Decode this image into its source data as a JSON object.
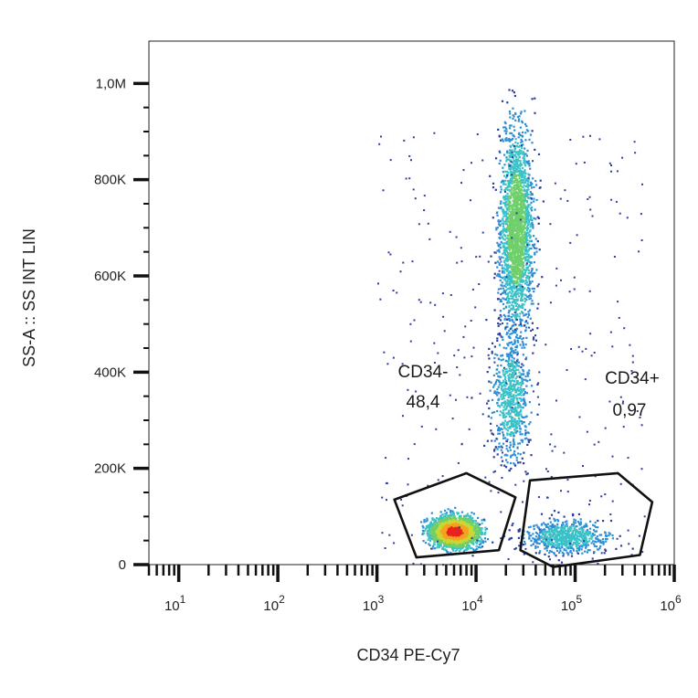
{
  "chart_data": {
    "type": "scatter",
    "subtype": "flow-cytometry-density-dot-plot",
    "xlabel": "CD34 PE-Cy7",
    "ylabel": "SS-A :: SS INT LIN",
    "x_scale": "log",
    "y_scale": "linear",
    "xlim": [
      5,
      1000000
    ],
    "ylim": [
      0,
      1050000
    ],
    "x_ticks": [
      {
        "value": 10,
        "base": "10",
        "exp": "1"
      },
      {
        "value": 100,
        "base": "10",
        "exp": "2"
      },
      {
        "value": 1000,
        "base": "10",
        "exp": "3"
      },
      {
        "value": 10000,
        "base": "10",
        "exp": "4"
      },
      {
        "value": 100000,
        "base": "10",
        "exp": "5"
      },
      {
        "value": 1000000,
        "base": "10",
        "exp": "6"
      }
    ],
    "y_ticks": [
      {
        "value": 0,
        "label": "0"
      },
      {
        "value": 200000,
        "label": "200K"
      },
      {
        "value": 400000,
        "label": "400K"
      },
      {
        "value": 600000,
        "label": "600K"
      },
      {
        "value": 800000,
        "label": "800K"
      },
      {
        "value": 1000000,
        "label": "1,0M"
      }
    ],
    "colormap": [
      "#2e3f9e",
      "#2f8fd6",
      "#3cc1c8",
      "#6fcf6a",
      "#c9d832",
      "#f5a21f",
      "#e8231c"
    ],
    "populations": [
      {
        "x_center": 6000,
        "y_center": 70000,
        "x_spread_decades": 0.17,
        "y_spread": 22000,
        "density": "very high"
      },
      {
        "x_center": 25000,
        "y_center": 700000,
        "x_spread_decades": 0.12,
        "y_spread": 150000,
        "density": "medium"
      },
      {
        "x_center": 22000,
        "y_center": 350000,
        "x_spread_decades": 0.14,
        "y_spread": 90000,
        "density": "low"
      },
      {
        "x_center": 80000,
        "y_center": 60000,
        "x_spread_decades": 0.3,
        "y_spread": 25000,
        "density": "low"
      }
    ],
    "gates": [
      {
        "name": "CD34-",
        "value": "48,4",
        "polygon": [
          [
            1500,
            135000
          ],
          [
            8000,
            190000
          ],
          [
            25000,
            140000
          ],
          [
            17000,
            30000
          ],
          [
            2500,
            15000
          ]
        ]
      },
      {
        "name": "CD34+",
        "value": "0,97",
        "polygon": [
          [
            35000,
            175000
          ],
          [
            270000,
            190000
          ],
          [
            600000,
            130000
          ],
          [
            450000,
            20000
          ],
          [
            60000,
            -5000
          ],
          [
            28000,
            30000
          ]
        ]
      }
    ],
    "grid": false,
    "legend": "none"
  }
}
